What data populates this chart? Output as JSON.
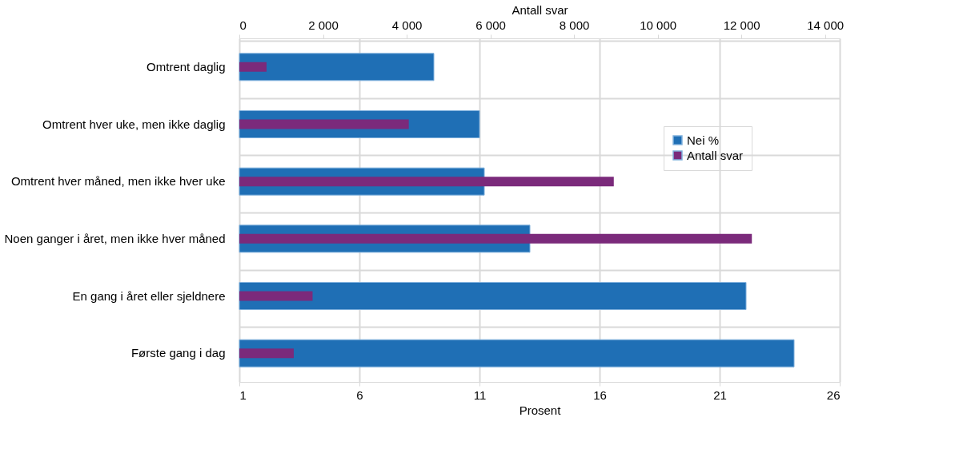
{
  "chart_data": {
    "type": "bar",
    "orientation": "horizontal",
    "categories": [
      "Omtrent daglig",
      "Omtrent hver uke, men ikke daglig",
      "Omtrent hver måned, men ikke hver uke",
      "Noen ganger i året, men ikke hver måned",
      "En gang i året eller sjeldnere",
      "Første gang i dag"
    ],
    "series": [
      {
        "name": "Nei %",
        "color": "#1f6fb5",
        "values": [
          9.1,
          11.0,
          11.2,
          13.1,
          22.1,
          24.1
        ]
      },
      {
        "name": "Antall svar",
        "color": "#7b2a7b",
        "axis": "x2",
        "values": [
          650,
          4050,
          8950,
          12250,
          1750,
          1300
        ]
      }
    ],
    "xlabel": "Prosent",
    "xlim": [
      1,
      26
    ],
    "xticks": [
      1,
      6,
      11,
      16,
      21,
      26
    ],
    "x2label": "Antall svar",
    "x2lim": [
      0,
      14350
    ],
    "x2ticks": [
      0,
      2000,
      4000,
      6000,
      8000,
      10000,
      12000,
      14000
    ],
    "grid": true,
    "legend": "top right"
  }
}
